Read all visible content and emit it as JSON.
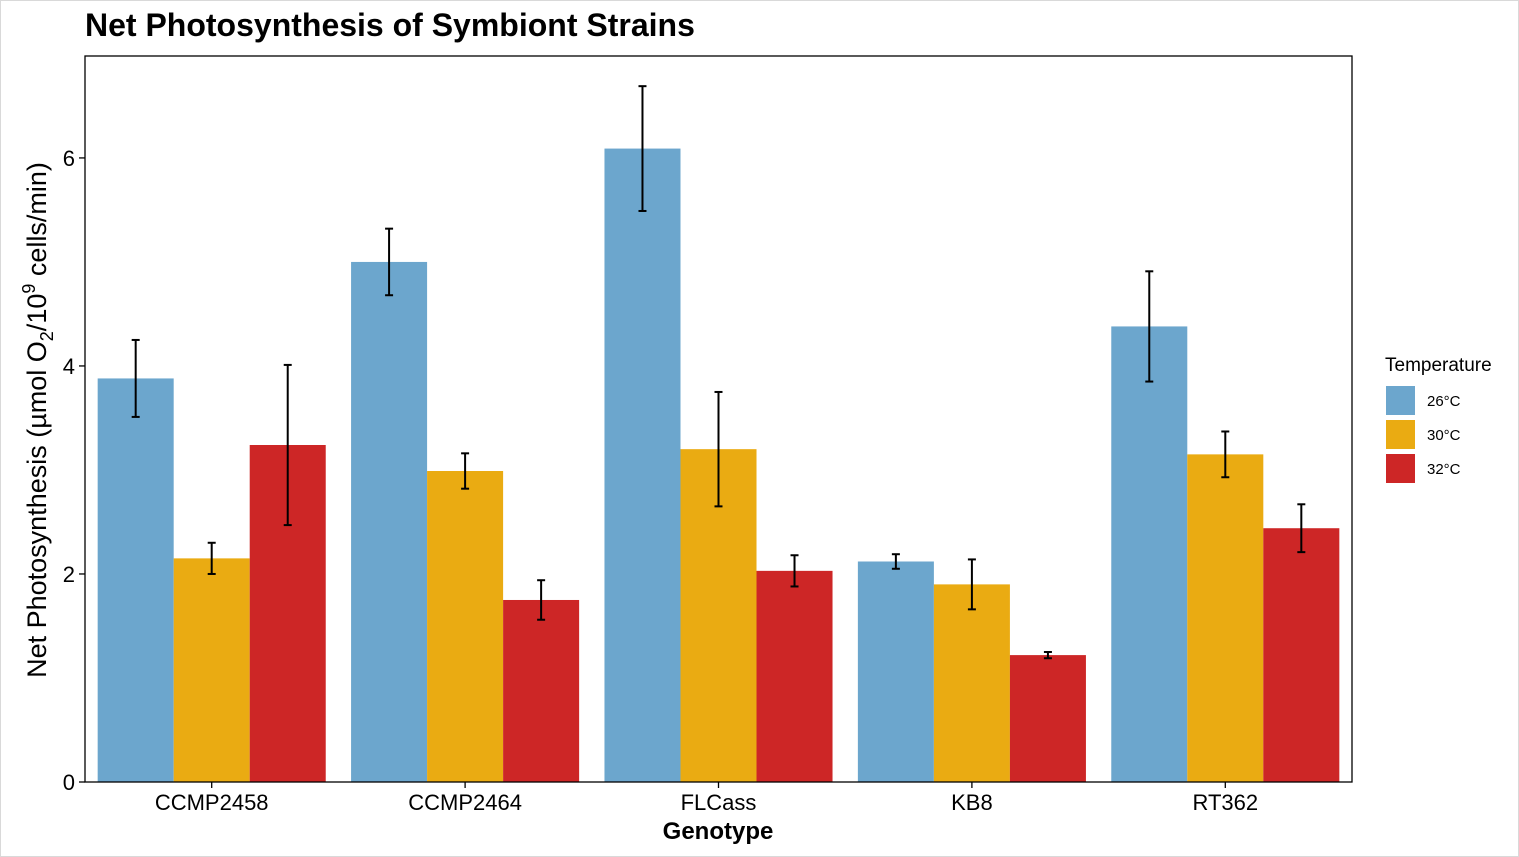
{
  "chart_data": {
    "type": "bar",
    "title": "Net Photosynthesis of Symbiont Strains",
    "xlabel": "Genotype",
    "ylabel_parts": {
      "prefix": "Net Photosynthesis (µmol O",
      "sub": "2",
      "middle": "/10",
      "sup": "9",
      "suffix": " cells/min)"
    },
    "categories": [
      "CCMP2458",
      "CCMP2464",
      "FLCass",
      "KB8",
      "RT362"
    ],
    "ylim": [
      0,
      6.98
    ],
    "yticks": [
      0,
      2,
      4,
      6
    ],
    "grid": false,
    "legend": {
      "title": "Temperature",
      "position": "right"
    },
    "series": [
      {
        "name": "26°C",
        "color": "#6ca6cd",
        "values": [
          3.88,
          5.0,
          6.09,
          2.12,
          4.38
        ],
        "errors": [
          0.37,
          0.32,
          0.6,
          0.07,
          0.53
        ]
      },
      {
        "name": "30°C",
        "color": "#eaab12",
        "values": [
          2.15,
          2.99,
          3.2,
          1.9,
          3.15
        ],
        "errors": [
          0.15,
          0.17,
          0.55,
          0.24,
          0.22
        ]
      },
      {
        "name": "32°C",
        "color": "#cd2626",
        "values": [
          3.24,
          1.75,
          2.03,
          1.22,
          2.44
        ],
        "errors": [
          0.77,
          0.19,
          0.15,
          0.03,
          0.23
        ]
      }
    ]
  }
}
